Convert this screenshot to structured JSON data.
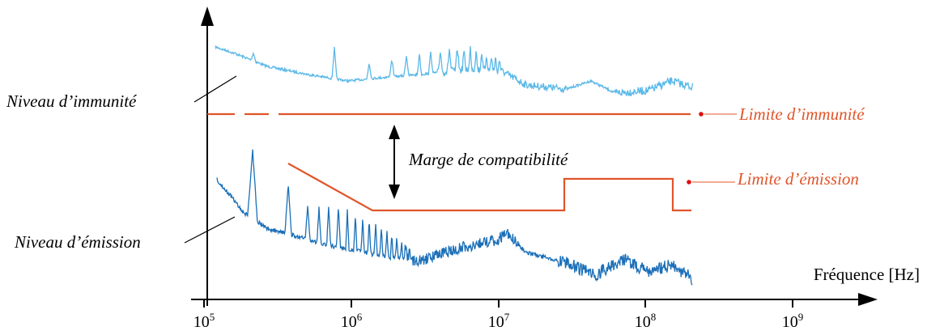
{
  "labels": {
    "immunity_level": "Niveau d’immunité",
    "emission_level": "Niveau d’émission",
    "immunity_limit": "Limite d’immunité",
    "emission_limit": "Limite d’émission",
    "margin": "Marge de compatibilité",
    "x_axis": "Fréquence [Hz]"
  },
  "x_ticks": [
    {
      "base": "10",
      "exp": "5"
    },
    {
      "base": "10",
      "exp": "6"
    },
    {
      "base": "10",
      "exp": "7"
    },
    {
      "base": "10",
      "exp": "8"
    },
    {
      "base": "10",
      "exp": "9"
    }
  ],
  "colors": {
    "immunity_curve": "#5bb8e8",
    "emission_curve": "#1a6fb8",
    "limit": "#e0552a",
    "axis": "#000000",
    "marker": "#e01010"
  }
}
